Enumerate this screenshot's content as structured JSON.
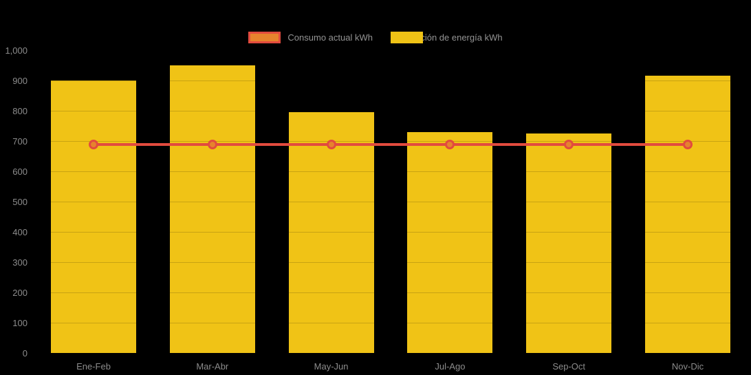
{
  "colors": {
    "background": "#000000",
    "bar_fill": "#F0C316",
    "line_stroke": "#E24B3E",
    "marker_fill": "#E6832D",
    "tick_text": "#8C8C8C",
    "legend_text": "#949494"
  },
  "legend": {
    "position": "top-center",
    "items": [
      {
        "label": "Consumo actual kWh",
        "swatch": "orange-fill-red-border"
      },
      {
        "label": "Generación de energía kWh",
        "swatch": "yellow-fill"
      }
    ]
  },
  "chart_data": {
    "type": "bar",
    "title": "",
    "xlabel": "",
    "ylabel": "",
    "categories": [
      "Ene-Feb",
      "Mar-Abr",
      "May-Jun",
      "Jul-Ago",
      "Sep-Oct",
      "Nov-Dic"
    ],
    "series": [
      {
        "name": "Consumo actual kWh",
        "type": "line",
        "values": [
          688,
          688,
          688,
          688,
          688,
          688
        ],
        "color": "#E24B3E",
        "marker": "circle",
        "marker_fill": "#E6832D"
      },
      {
        "name": "Generación de energía kWh",
        "type": "bar",
        "values": [
          900,
          950,
          795,
          730,
          725,
          915
        ],
        "color": "#F0C316"
      }
    ],
    "ylim": [
      0,
      1000
    ],
    "ytick_step": 100,
    "ytick_labels": [
      "0",
      "100",
      "200",
      "300",
      "400",
      "500",
      "600",
      "700",
      "800",
      "900",
      "1,000"
    ],
    "grid": "very-faint-horizontal",
    "legend_position": "top"
  }
}
